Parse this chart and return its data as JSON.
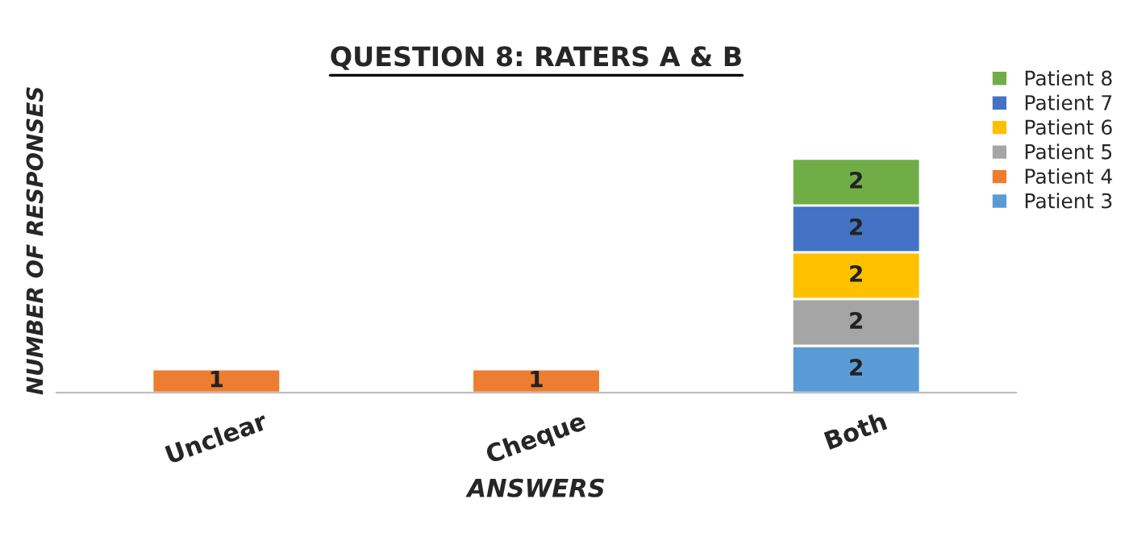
{
  "chart_data": {
    "type": "bar",
    "title": "QUESTION 8: RATERS A & B",
    "xlabel": "ANSWERS",
    "ylabel": "NUMBER OF RESPONSES",
    "categories": [
      "Unclear",
      "Cheque",
      "Both"
    ],
    "stacked": true,
    "data_labels": true,
    "legend": "top right",
    "grid": false,
    "tick_labels": "x",
    "series": [
      {
        "name": "Patient 3",
        "color": "#5b9bd5",
        "values": [
          null,
          null,
          2
        ]
      },
      {
        "name": "Patient 4",
        "color": "#ed7d31",
        "values": [
          1,
          1,
          null
        ]
      },
      {
        "name": "Patient 5",
        "color": "#a5a5a5",
        "values": [
          null,
          null,
          2
        ]
      },
      {
        "name": "Patient 6",
        "color": "#ffc000",
        "values": [
          null,
          null,
          2
        ]
      },
      {
        "name": "Patient 7",
        "color": "#4472c4",
        "values": [
          null,
          null,
          2
        ]
      },
      {
        "name": "Patient 8",
        "color": "#70ad47",
        "values": [
          null,
          null,
          2
        ]
      }
    ]
  }
}
